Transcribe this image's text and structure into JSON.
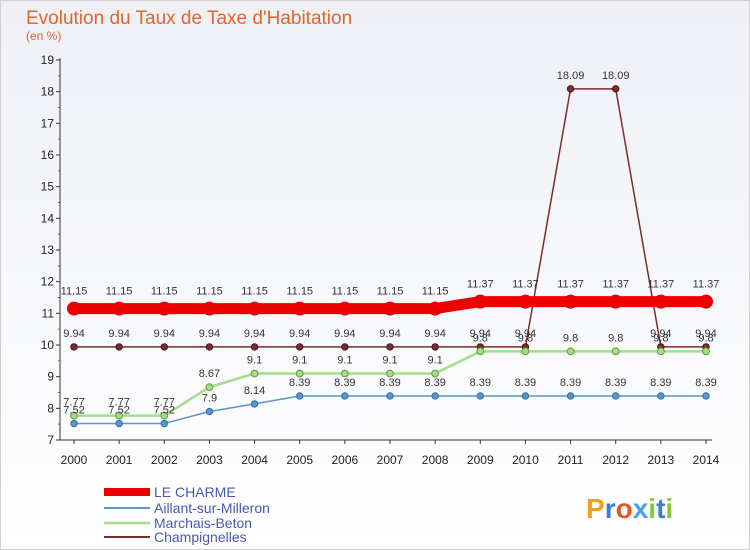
{
  "chart_data": {
    "type": "line",
    "title": "Evolution du Taux de Taxe d'Habitation",
    "subtitle": "(en %)",
    "xlabel": "",
    "ylabel": "",
    "x": [
      "2000",
      "2001",
      "2002",
      "2003",
      "2004",
      "2005",
      "2006",
      "2007",
      "2008",
      "2009",
      "2010",
      "2011",
      "2012",
      "2013",
      "2014"
    ],
    "ylim": [
      7,
      19
    ],
    "yticks": [
      "7",
      "8",
      "9",
      "10",
      "11",
      "12",
      "13",
      "14",
      "15",
      "16",
      "17",
      "18",
      "19"
    ],
    "grid": false,
    "legend_position": "bottom-left",
    "series": [
      {
        "name": "LE CHARME",
        "color": "#ee0000",
        "values": [
          11.15,
          11.15,
          11.15,
          11.15,
          11.15,
          11.15,
          11.15,
          11.15,
          11.15,
          11.37,
          11.37,
          11.37,
          11.37,
          11.37,
          11.37
        ],
        "labels": [
          "11.15",
          "11.15",
          "11.15",
          "11.15",
          "11.15",
          "11.15",
          "11.15",
          "11.15",
          "11.15",
          "11.37",
          "11.37",
          "11.37",
          "11.37",
          "11.37",
          "11.37"
        ]
      },
      {
        "name": "Aillant-sur-Milleron",
        "color": "#5b95cc",
        "values": [
          7.52,
          7.52,
          7.52,
          7.9,
          8.14,
          8.39,
          8.39,
          8.39,
          8.39,
          8.39,
          8.39,
          8.39,
          8.39,
          8.39,
          8.39
        ],
        "labels": [
          "7.52",
          "7.52",
          "7.52",
          "7.9",
          "8.14",
          "8.39",
          "8.39",
          "8.39",
          "8.39",
          "8.39",
          "8.39",
          "8.39",
          "8.39",
          "8.39",
          "8.39"
        ]
      },
      {
        "name": "Marchais-Beton",
        "color": "#a6dc8a",
        "values": [
          7.77,
          7.77,
          7.77,
          8.67,
          9.1,
          9.1,
          9.1,
          9.1,
          9.1,
          9.8,
          9.8,
          9.8,
          9.8,
          9.8,
          9.8
        ],
        "labels": [
          "7.77",
          "7.77",
          "7.77",
          "8.67",
          "9.1",
          "9.1",
          "9.1",
          "9.1",
          "9.1",
          "9.8",
          "9.8",
          "9.8",
          "9.8",
          "9.8",
          "9.8"
        ]
      },
      {
        "name": "Champignelles",
        "color": "#7b2c2c",
        "values": [
          9.94,
          9.94,
          9.94,
          9.94,
          9.94,
          9.94,
          9.94,
          9.94,
          9.94,
          9.94,
          9.94,
          18.09,
          18.09,
          9.94,
          9.94
        ],
        "labels": [
          "9.94",
          "9.94",
          "9.94",
          "9.94",
          "9.94",
          "9.94",
          "9.94",
          "9.94",
          "9.94",
          "9.94",
          "9.94",
          "18.09",
          "18.09",
          "9.94",
          "9.94"
        ]
      }
    ]
  },
  "logo": {
    "letters": [
      "P",
      "r",
      "o",
      "x",
      "i",
      "t",
      "i"
    ],
    "colors": [
      "#f0a020",
      "#3a7fd0",
      "#e05a20",
      "#4aa3e0",
      "#8cc63f",
      "#3a7fd0",
      "#8cc63f"
    ]
  }
}
